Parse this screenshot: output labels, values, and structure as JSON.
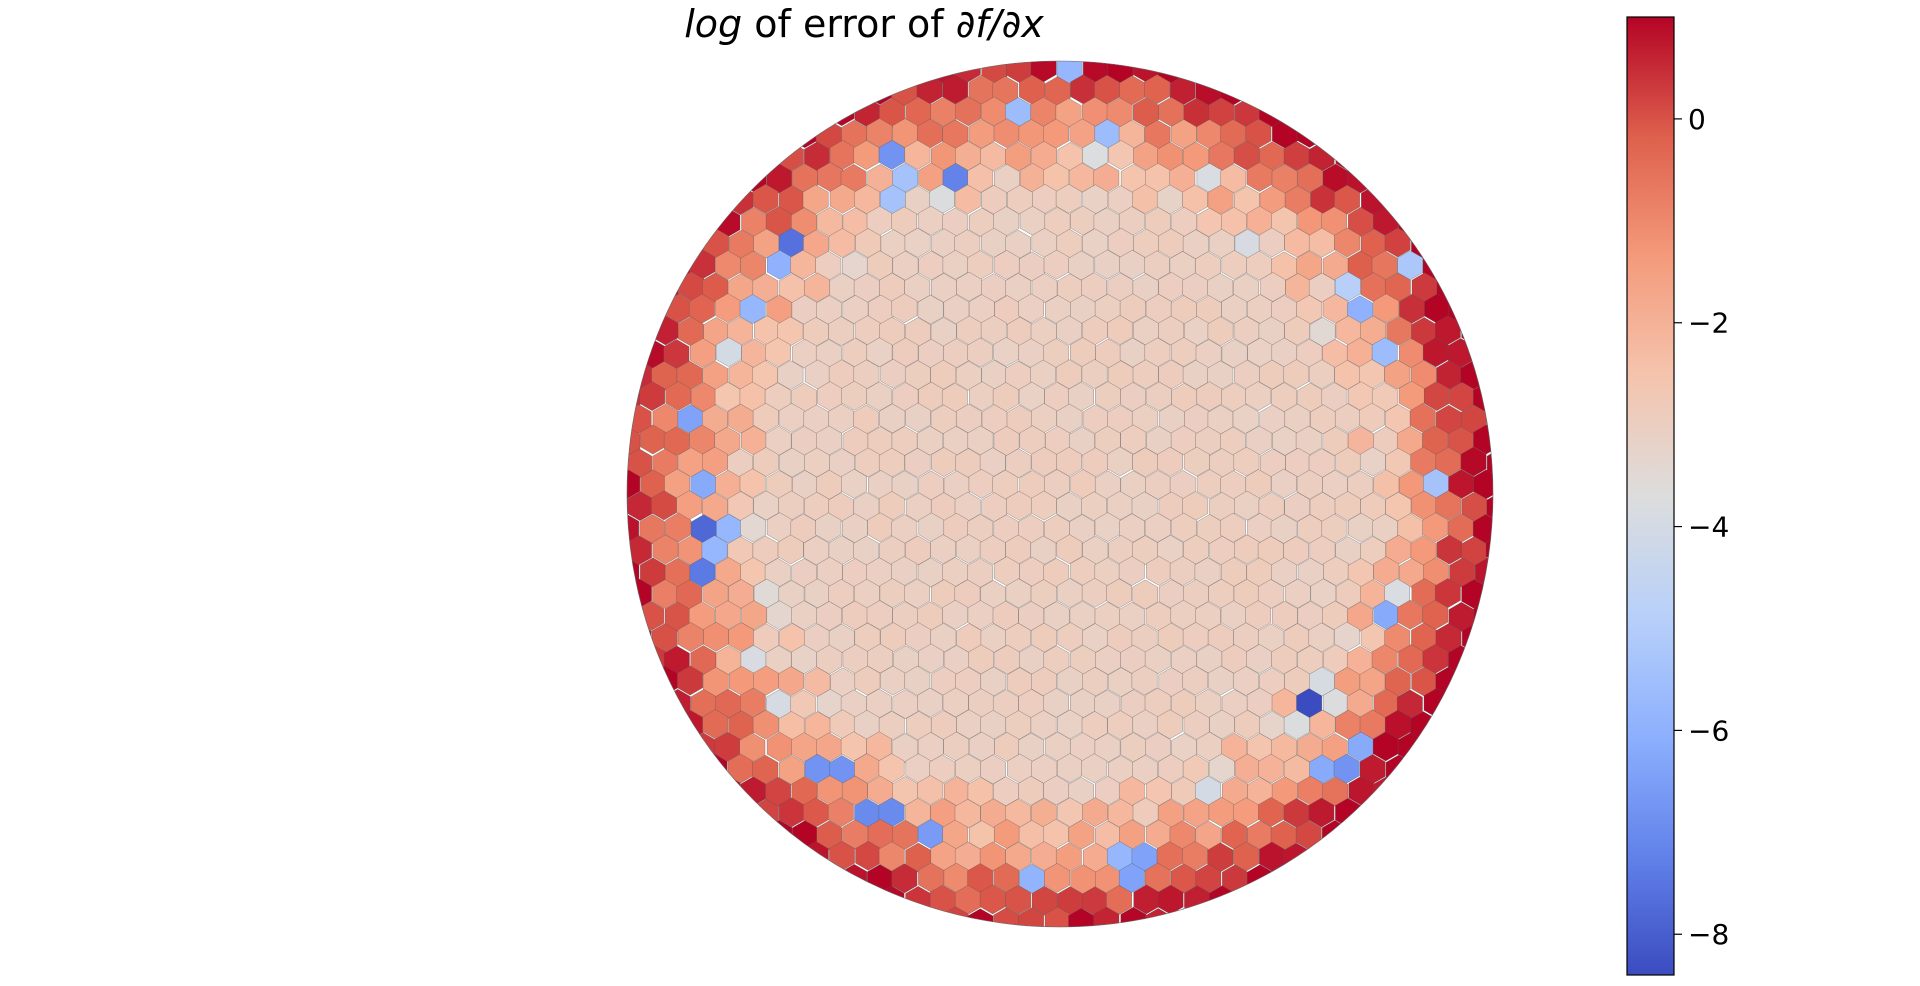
{
  "chart_data": {
    "type": "heatmap",
    "subtype": "voronoi-cells-on-disk",
    "title": {
      "math_prefix": "log",
      "middle": " of error of ",
      "math_suffix": "∂f/∂x"
    },
    "colorbar": {
      "colormap": "coolwarm",
      "range": [
        -8.4,
        1.0
      ],
      "ticks": [
        0,
        -2,
        -4,
        -6,
        -8
      ],
      "tick_labels": [
        "0",
        "−2",
        "−4",
        "−6",
        "−8"
      ]
    },
    "interior_value": -3.0,
    "edge_max": 1.0,
    "blue_cells": [
      [
        0.0,
        0.99,
        -5.8
      ],
      [
        -0.1,
        0.88,
        -5.6
      ],
      [
        -0.37,
        0.79,
        -6.8
      ],
      [
        -0.26,
        0.74,
        -7.2
      ],
      [
        -0.38,
        0.71,
        -5.4
      ],
      [
        -0.63,
        0.58,
        -7.6
      ],
      [
        -0.67,
        0.53,
        -6.0
      ],
      [
        -0.69,
        0.43,
        -5.8
      ],
      [
        -0.87,
        0.16,
        -6.4
      ],
      [
        -0.82,
        0.04,
        -6.2
      ],
      [
        -0.81,
        -0.06,
        -7.8
      ],
      [
        -0.78,
        -0.08,
        -5.8
      ],
      [
        -0.77,
        -0.13,
        -5.8
      ],
      [
        -0.84,
        -0.2,
        -7.4
      ],
      [
        0.82,
        0.54,
        -5.2
      ],
      [
        0.63,
        0.56,
        -7.8
      ],
      [
        0.67,
        0.49,
        -4.9
      ],
      [
        0.7,
        0.41,
        -6.0
      ],
      [
        0.76,
        0.32,
        -5.6
      ],
      [
        0.75,
        -0.26,
        -6.2
      ],
      [
        0.86,
        0.0,
        -5.4
      ],
      [
        0.6,
        -0.5,
        -8.4
      ],
      [
        0.63,
        -0.64,
        -6.2
      ],
      [
        0.69,
        -0.6,
        -6.2
      ],
      [
        0.66,
        -0.62,
        -6.8
      ],
      [
        -0.42,
        -0.74,
        -7.0
      ],
      [
        -0.53,
        -0.64,
        -6.8
      ],
      [
        -0.3,
        -0.8,
        -6.6
      ],
      [
        -0.05,
        -0.87,
        -5.9
      ],
      [
        0.18,
        -0.86,
        -6.4
      ],
      [
        0.14,
        -0.81,
        -5.8
      ],
      [
        0.1,
        0.85,
        -5.6
      ]
    ]
  }
}
